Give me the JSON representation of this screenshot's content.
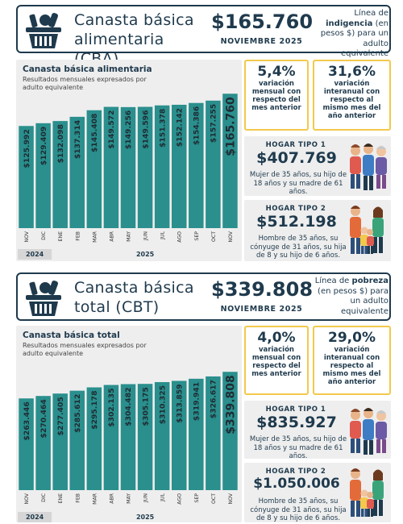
{
  "colors": {
    "bar": "#2a8f8d",
    "navy": "#1f3a4d",
    "yellow": "#f2c94c",
    "panel": "#eeeeee"
  },
  "cba": {
    "title": "Canasta básica alimentaria (CBA)",
    "amount": "$165.760",
    "period": "NOVIEMBRE 2025",
    "note_pre": "Línea de",
    "note_bold": "indigencia",
    "note_post": "(en pesos $) para un adulto equivalente",
    "chart_title": "Canasta básica alimentaria",
    "chart_subtitle": "Resultados mensuales expresados por adulto equivalente",
    "stat_monthly_value": "5,4%",
    "stat_monthly_label": "variación mensual con respecto del mes anterior",
    "stat_yearly_value": "31,6%",
    "stat_yearly_label": "variación interanual con respecto al mismo mes del año anterior",
    "hogar1_title": "HOGAR TIPO 1",
    "hogar1_amount": "$407.769",
    "hogar1_desc": "Mujer de 35 años, su hijo de 18 años y su madre de 61 años.",
    "hogar2_title": "HOGAR TIPO 2",
    "hogar2_amount": "$512.198",
    "hogar2_desc": "Hombre de 35 años, su cónyuge de 31 años, su hija de 8 y su hijo de 6 años."
  },
  "cbt": {
    "title": "Canasta básica total (CBT)",
    "amount": "$339.808",
    "period": "NOVIEMBRE 2025",
    "note_pre": "Línea de",
    "note_bold": "pobreza",
    "note_post": "(en pesos $) para un adulto equivalente",
    "chart_title": "Canasta básica total",
    "chart_subtitle": "Resultados mensuales expresados por adulto equivalente",
    "stat_monthly_value": "4,0%",
    "stat_monthly_label": "variación mensual con respecto del mes anterior",
    "stat_yearly_value": "29,0%",
    "stat_yearly_label": "variación interanual con respecto al mismo mes del año anterior",
    "hogar1_title": "HOGAR TIPO 1",
    "hogar1_amount": "$835.927",
    "hogar1_desc": "Mujer de 35 años, su hijo de 18 años y su madre de 61 años.",
    "hogar2_title": "HOGAR TIPO 2",
    "hogar2_amount": "$1.050.006",
    "hogar2_desc": "Hombre de 35 años, su cónyuge de 31 años, su hija de 8 y su hijo de 6 años."
  },
  "chart_data": [
    {
      "type": "bar",
      "title": "Canasta básica alimentaria",
      "subtitle": "Resultados mensuales expresados por adulto equivalente",
      "categories": [
        "NOV",
        "DIC",
        "ENE",
        "FEB",
        "MAR",
        "ABR",
        "MAY",
        "JUN",
        "JUL",
        "AGO",
        "SEP",
        "OCT",
        "NOV"
      ],
      "years": [
        {
          "label": "2024",
          "span": 2
        },
        {
          "label": "2025",
          "span": 11
        }
      ],
      "values": [
        125992,
        129409,
        132098,
        137314,
        145408,
        149572,
        149256,
        149596,
        151378,
        152142,
        154386,
        157255,
        165760
      ],
      "value_labels": [
        "$125.992",
        "$129.409",
        "$132.098",
        "$137.314",
        "$145.408",
        "$149.572",
        "$149.256",
        "$149.596",
        "$151.378",
        "$152.142",
        "$154.386",
        "$157.255",
        "$165.760"
      ],
      "ylim": [
        0,
        170000
      ],
      "grid": false
    },
    {
      "type": "bar",
      "title": "Canasta básica total",
      "subtitle": "Resultados mensuales expresados por adulto equivalente",
      "categories": [
        "NOV",
        "DIC",
        "ENE",
        "FEB",
        "MAR",
        "ABR",
        "MAY",
        "JUN",
        "JUL",
        "AGO",
        "SEP",
        "OCT",
        "NOV"
      ],
      "years": [
        {
          "label": "2024",
          "span": 2
        },
        {
          "label": "2025",
          "span": 11
        }
      ],
      "values": [
        263446,
        270464,
        277405,
        285612,
        295178,
        302135,
        304482,
        305175,
        310325,
        313859,
        319941,
        326617,
        339808
      ],
      "value_labels": [
        "$263.446",
        "$270.464",
        "$277.405",
        "$285.612",
        "$295.178",
        "$302.135",
        "$304.482",
        "$305.175",
        "$310.325",
        "$313.859",
        "$319.941",
        "$326.617",
        "$339.808"
      ],
      "ylim": [
        0,
        345000
      ],
      "grid": false
    }
  ]
}
